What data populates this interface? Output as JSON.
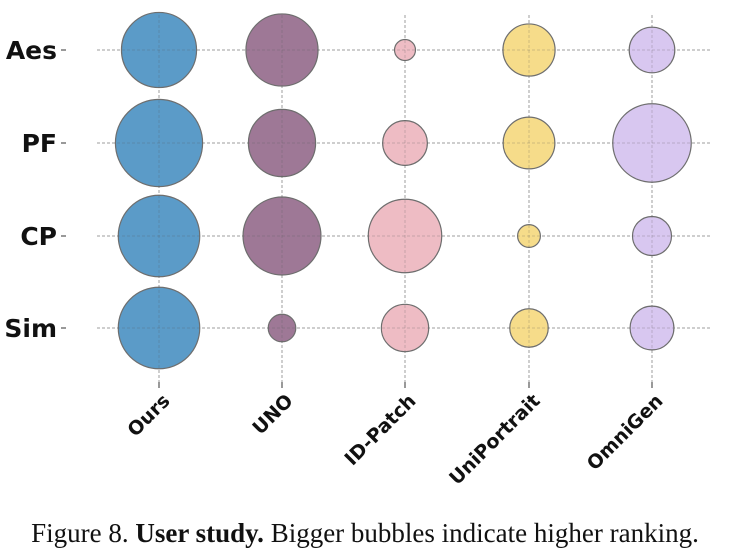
{
  "chart_data": {
    "type": "scatter",
    "subtype": "bubble",
    "categories": [
      "Ours",
      "UNO",
      "ID-Patch",
      "UniPortrait",
      "OmniGen"
    ],
    "rows": [
      "Aes",
      "PF",
      "CP",
      "Sim"
    ],
    "size_units": "relative bubble area (larger = higher ranking)",
    "series": [
      {
        "name": "Aes",
        "values": [
          141,
          130,
          11,
          68,
          52
        ]
      },
      {
        "name": "PF",
        "values": [
          190,
          113,
          50,
          67,
          154
        ]
      },
      {
        "name": "CP",
        "values": [
          166,
          152,
          135,
          13,
          38
        ]
      },
      {
        "name": "Sim",
        "values": [
          166,
          19,
          56,
          37,
          48
        ]
      }
    ],
    "colors": [
      "#5b9bc8",
      "#9e7896",
      "#eebcc4",
      "#f6dc8a",
      "#d8c7f0"
    ],
    "edge_color": "#6e6e6e",
    "grid": true,
    "title": "",
    "xlabel": "",
    "ylabel": ""
  },
  "caption": {
    "figure_label": "Figure 8.",
    "bold": "User study.",
    "text": "Bigger bubbles indicate higher ranking."
  }
}
